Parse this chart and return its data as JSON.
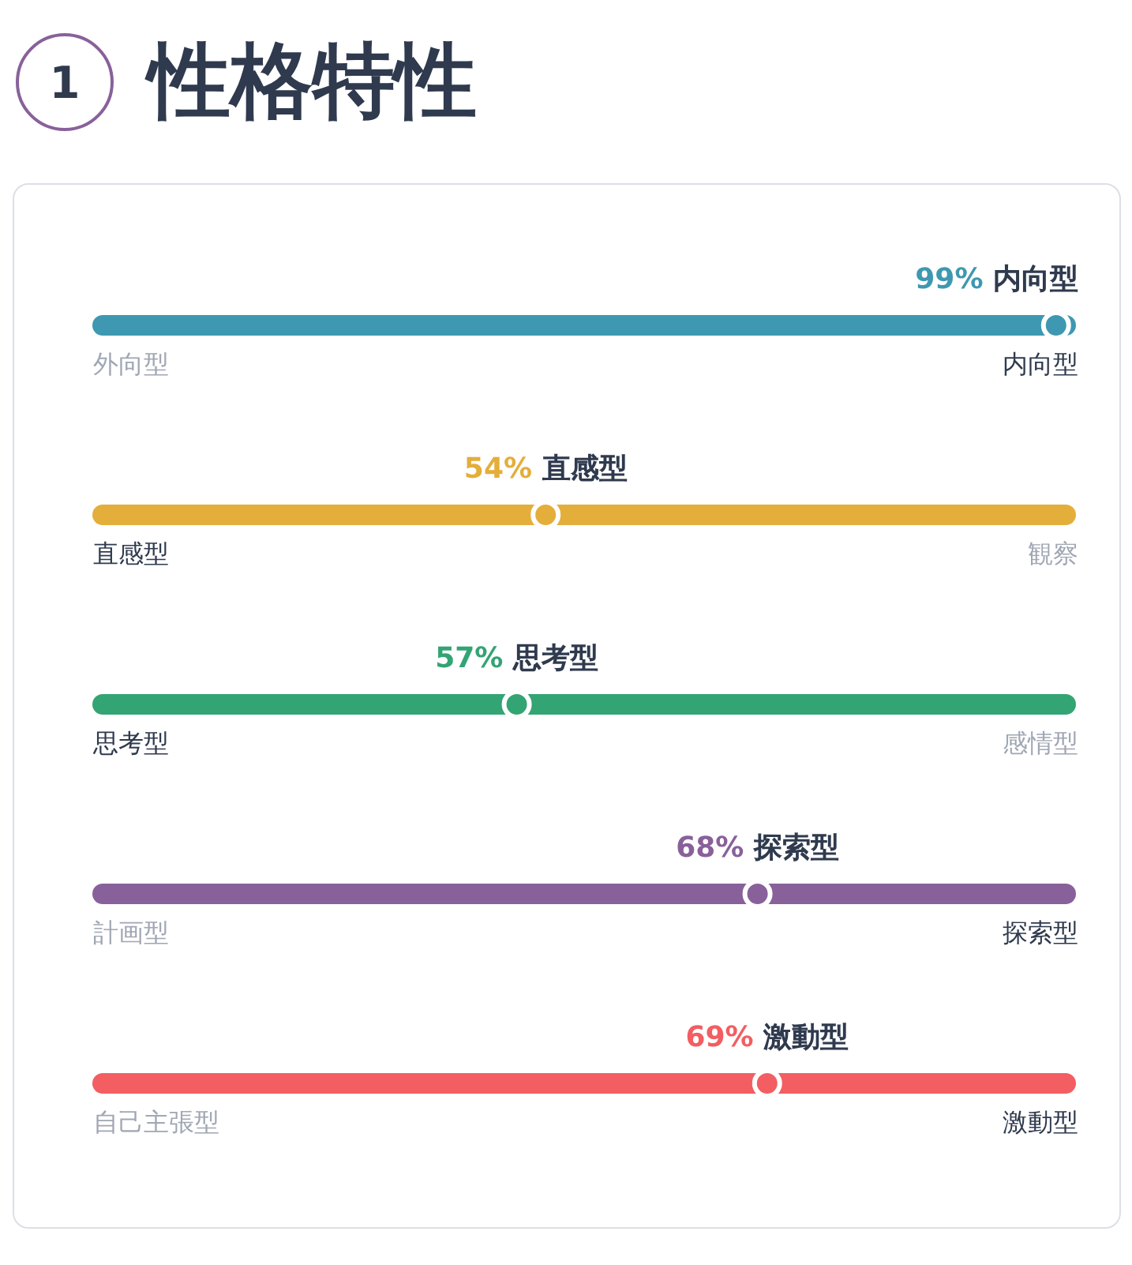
{
  "chart_data": {
    "type": "other",
    "title": "性格特性",
    "annotations": [
      "1",
      "外向型",
      "内向型",
      "直感型",
      "観察",
      "思考型",
      "感情型",
      "計画型",
      "探索型",
      "自己主張型",
      "激動型"
    ],
    "categories": [
      "内向型",
      "直感型",
      "思考型",
      "探索型",
      "激動型"
    ],
    "colors": [
      "#3e98b1",
      "#e4ae3b",
      "#33a474",
      "#88619a",
      "#f25e62"
    ],
    "series": [
      {
        "values": [
          null,
          54,
          57,
          null,
          null
        ],
        "value_labels": [
          null,
          "54%",
          "57%",
          null,
          null
        ]
      },
      {
        "values": [
          99,
          null,
          null,
          68,
          69
        ],
        "value_labels": [
          "99%",
          null,
          null,
          "68%",
          "69%"
        ]
      }
    ]
  }
}
